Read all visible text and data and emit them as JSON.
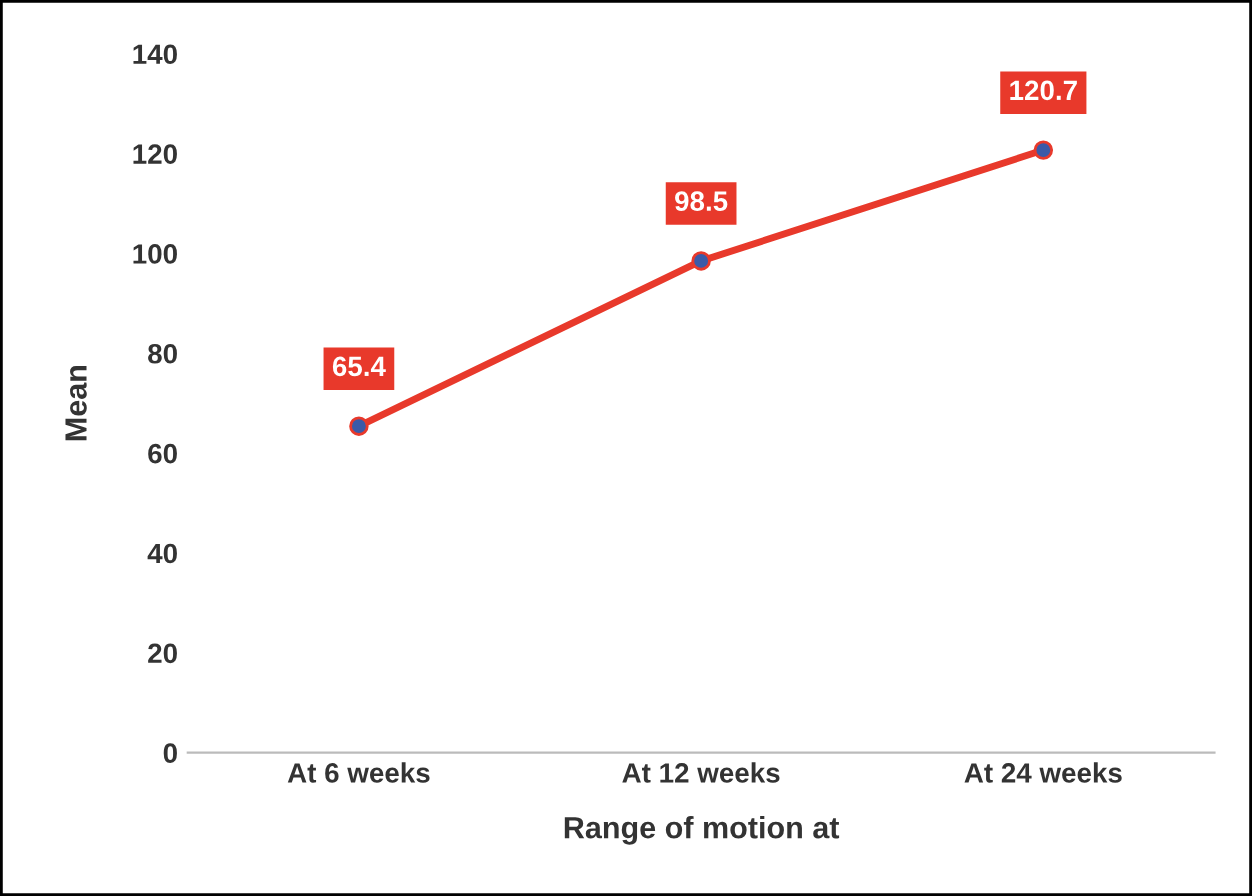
{
  "chart_data": {
    "type": "line",
    "xlabel": "Range of motion at",
    "ylabel": "Mean",
    "categories": [
      "At 6 weeks",
      "At 12 weeks",
      "At 24 weeks"
    ],
    "series": [
      {
        "color": "#e8392b",
        "values": [
          65.4,
          98.5,
          120.7
        ]
      }
    ],
    "ylim": [
      0,
      140
    ],
    "yticks": [
      0,
      20,
      40,
      60,
      80,
      100,
      120,
      140
    ],
    "grid": false,
    "legend": false,
    "marker": "circle",
    "line_style": "solid",
    "data_labels": true
  }
}
